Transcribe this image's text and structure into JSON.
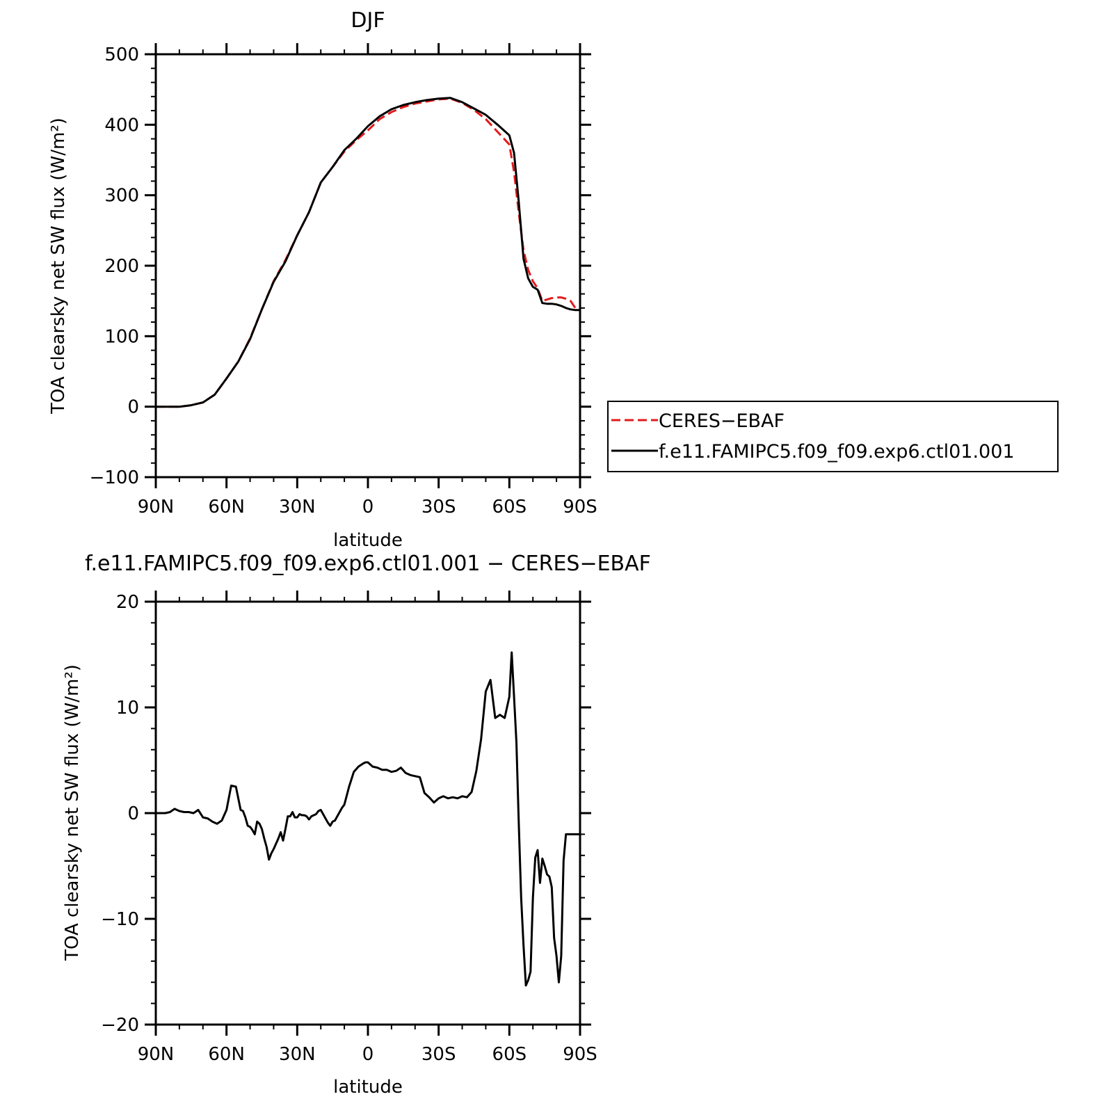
{
  "chart_data": [
    {
      "type": "line",
      "title": "DJF",
      "xlabel": "latitude",
      "ylabel": "TOA clearsky net SW flux (W/m²)",
      "xlim": [
        90,
        -90
      ],
      "ylim": [
        -100,
        500
      ],
      "x_ticks": [
        90,
        60,
        30,
        0,
        -30,
        -60,
        -90
      ],
      "x_tick_labels": [
        "90N",
        "60N",
        "30N",
        "0",
        "30S",
        "60S",
        "90S"
      ],
      "y_ticks": [
        -100,
        0,
        100,
        200,
        300,
        400,
        500
      ],
      "y_tick_labels": [
        "−100",
        "0",
        "100",
        "200",
        "300",
        "400",
        "500"
      ],
      "legend_placement": "right",
      "series": [
        {
          "name": "CERES−EBAF",
          "color": "#e31a1c",
          "dash": "dashed",
          "x": [
            90,
            85,
            80,
            75,
            70,
            65,
            60,
            55,
            50,
            45,
            40,
            35,
            30,
            25,
            20,
            15,
            10,
            5,
            0,
            -5,
            -10,
            -15,
            -20,
            -25,
            -30,
            -35,
            -40,
            -45,
            -50,
            -55,
            -60,
            -62,
            -64,
            -66,
            -68,
            -70,
            -72,
            -74,
            -76,
            -78,
            -80,
            -82,
            -84,
            -86,
            -88,
            -90
          ],
          "y": [
            0,
            0,
            0,
            2,
            6,
            17,
            40,
            64,
            97,
            138,
            178,
            208,
            243,
            276,
            318,
            340,
            362,
            378,
            392,
            408,
            418,
            425,
            430,
            433,
            436,
            437,
            431,
            421,
            408,
            390,
            372,
            333,
            275,
            222,
            194,
            178,
            168,
            150,
            152,
            154,
            155,
            155,
            153,
            150,
            140,
            138
          ]
        },
        {
          "name": "f.e11.FAMIPC5.f09_f09.exp6.ctl01.001",
          "color": "#000000",
          "dash": "solid",
          "x": [
            90,
            85,
            80,
            75,
            70,
            65,
            60,
            55,
            50,
            45,
            40,
            35,
            30,
            25,
            20,
            15,
            10,
            5,
            0,
            -5,
            -10,
            -15,
            -20,
            -25,
            -30,
            -35,
            -40,
            -45,
            -50,
            -55,
            -60,
            -62,
            -64,
            -66,
            -68,
            -70,
            -72,
            -74,
            -76,
            -78,
            -80,
            -82,
            -84,
            -86,
            -88,
            -90
          ],
          "y": [
            0,
            0,
            0,
            2,
            6,
            17,
            40,
            64,
            96,
            138,
            177,
            206,
            243,
            276,
            318,
            340,
            364,
            380,
            398,
            412,
            422,
            428,
            432,
            435,
            437,
            438,
            432,
            423,
            414,
            400,
            385,
            360,
            290,
            210,
            182,
            170,
            166,
            147,
            146,
            146,
            145,
            143,
            140,
            138,
            137,
            137
          ]
        }
      ]
    },
    {
      "type": "line",
      "title": "f.e11.FAMIPC5.f09_f09.exp6.ctl01.001 − CERES−EBAF",
      "xlabel": "latitude",
      "ylabel": "TOA clearsky net SW flux (W/m²)",
      "xlim": [
        90,
        -90
      ],
      "ylim": [
        -20,
        20
      ],
      "x_ticks": [
        90,
        60,
        30,
        0,
        -30,
        -60,
        -90
      ],
      "x_tick_labels": [
        "90N",
        "60N",
        "30N",
        "0",
        "30S",
        "60S",
        "90S"
      ],
      "y_ticks": [
        -20,
        -10,
        0,
        10,
        20
      ],
      "y_tick_labels": [
        "−20",
        "−10",
        "0",
        "10",
        "20"
      ],
      "series": [
        {
          "color": "#000000",
          "dash": "solid",
          "x": [
            90,
            86,
            84,
            82,
            80,
            78,
            76,
            74,
            72,
            70,
            68,
            66,
            64,
            62,
            60,
            58,
            56,
            54,
            53,
            52,
            51,
            50,
            49,
            48,
            47,
            46,
            45,
            44,
            43,
            42,
            41,
            40,
            39,
            38,
            37,
            36,
            35,
            34,
            33,
            32,
            31,
            30,
            29,
            28,
            27,
            26,
            25,
            24,
            23,
            22,
            21,
            20,
            19,
            18,
            17,
            16,
            15,
            14,
            13,
            12,
            11,
            10,
            8,
            6,
            4,
            2,
            1,
            0,
            -2,
            -4,
            -6,
            -8,
            -10,
            -12,
            -14,
            -16,
            -18,
            -20,
            -22,
            -24,
            -26,
            -28,
            -30,
            -32,
            -34,
            -36,
            -38,
            -40,
            -42,
            -44,
            -46,
            -48,
            -50,
            -52,
            -54,
            -56,
            -58,
            -60,
            -61,
            -62,
            -63,
            -64,
            -65,
            -66,
            -67,
            -68,
            -69,
            -70,
            -71,
            -72,
            -73,
            -74,
            -75,
            -76,
            -77,
            -78,
            -79,
            -80,
            -81,
            -82,
            -83,
            -84,
            -85,
            -86,
            -87,
            -88,
            -89,
            -90
          ],
          "y": [
            0,
            0,
            0.1,
            0.4,
            0.2,
            0.1,
            0.1,
            0,
            0.3,
            -0.4,
            -0.5,
            -0.8,
            -1.0,
            -0.7,
            0.3,
            2.6,
            2.5,
            0.3,
            0.2,
            -0.4,
            -1.2,
            -1.3,
            -1.6,
            -2.0,
            -0.8,
            -1.0,
            -1.5,
            -2.4,
            -3.2,
            -4.4,
            -3.8,
            -3.4,
            -2.9,
            -2.4,
            -1.8,
            -2.6,
            -1.5,
            -0.3,
            -0.3,
            0.1,
            -0.4,
            -0.4,
            -0.1,
            -0.2,
            -0.2,
            -0.3,
            -0.6,
            -0.3,
            -0.2,
            -0.1,
            0.2,
            0.3,
            -0.1,
            -0.5,
            -0.9,
            -1.2,
            -0.8,
            -0.7,
            -0.3,
            0.1,
            0.5,
            0.8,
            2.5,
            3.9,
            4.4,
            4.7,
            4.8,
            4.8,
            4.4,
            4.3,
            4.1,
            4.1,
            3.9,
            4.0,
            4.3,
            3.8,
            3.6,
            3.5,
            3.4,
            1.9,
            1.5,
            1.0,
            1.4,
            1.6,
            1.4,
            1.5,
            1.4,
            1.6,
            1.5,
            2.0,
            4.0,
            7.0,
            11.5,
            12.6,
            9.0,
            9.3,
            9.0,
            11.0,
            15.2,
            11.0,
            6.7,
            -1.0,
            -8.0,
            -12.5,
            -16.3,
            -15.8,
            -15.0,
            -8.0,
            -4.2,
            -3.5,
            -6.6,
            -4.3,
            -5.0,
            -5.8,
            -6.0,
            -7.0,
            -11.8,
            -13.5,
            -16.0,
            -13.5,
            -4.5,
            -2.0,
            -2.0,
            -2.0,
            -2.0,
            -2.0,
            -2.0,
            -2.0
          ]
        }
      ]
    }
  ]
}
